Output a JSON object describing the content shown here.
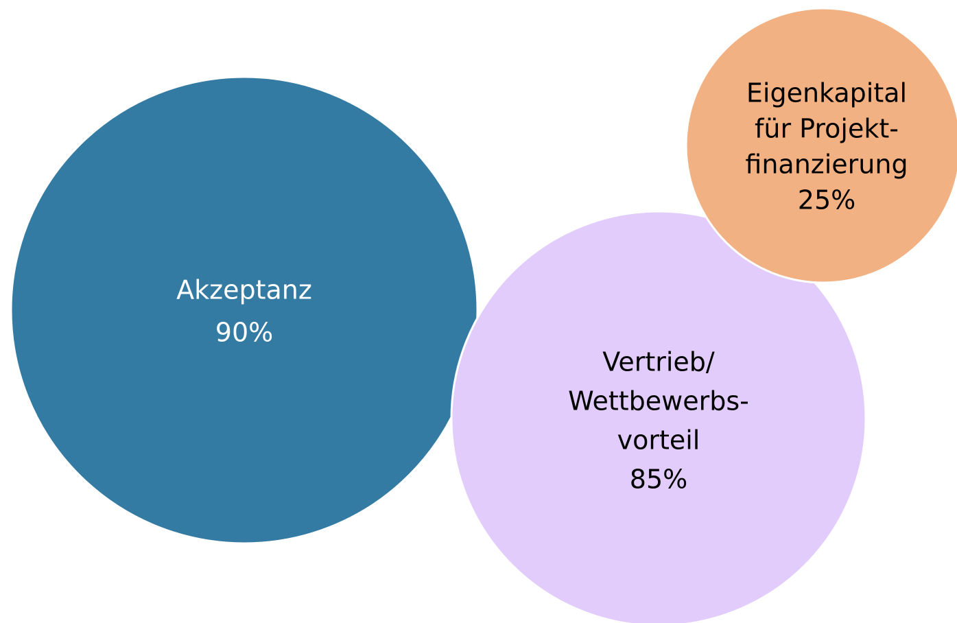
{
  "nodes": [
    {
      "label": [
        "Akzeptanz"
      ],
      "value": "90%"
    },
    {
      "label": [
        "Vertrieb/",
        "Wettbewerbs-",
        "vorteil"
      ],
      "value": "85%"
    },
    {
      "label": [
        "Eigenkapital",
        "für Projekt-",
        "finanzierung"
      ],
      "value": "25%"
    }
  ]
}
